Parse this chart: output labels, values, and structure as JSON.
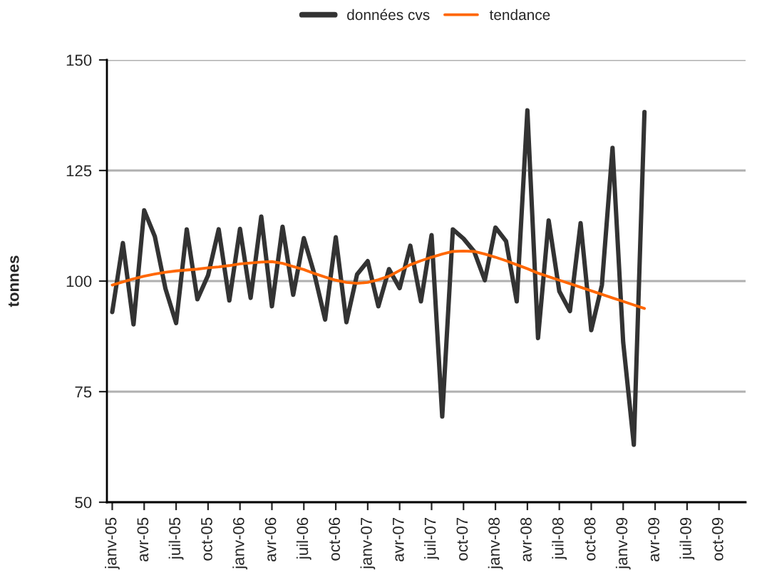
{
  "chart_data": {
    "type": "line",
    "ylabel": "tonnes",
    "categories": [
      "janv-05",
      null,
      null,
      "avr-05",
      null,
      null,
      "juil-05",
      null,
      null,
      "oct-05",
      null,
      null,
      "janv-06",
      null,
      null,
      "avr-06",
      null,
      null,
      "juil-06",
      null,
      null,
      "oct-06",
      null,
      null,
      "janv-07",
      null,
      null,
      "avr-07",
      null,
      null,
      "juil-07",
      null,
      null,
      "oct-07",
      null,
      null,
      "janv-08",
      null,
      null,
      "avr-08",
      null,
      null,
      "juil-08",
      null,
      null,
      "oct-08",
      null,
      null,
      "janv-09",
      null,
      null,
      "avr-09",
      null,
      null,
      "juil-09",
      null,
      null,
      "oct-09",
      null,
      null
    ],
    "series": [
      {
        "name": "données cvs",
        "color": "#333333",
        "values": [
          93.0,
          108.6,
          90.2,
          116.0,
          110.1,
          98.3,
          90.5,
          111.7,
          95.9,
          101.3,
          111.7,
          95.6,
          111.8,
          96.2,
          114.6,
          94.3,
          112.3,
          96.9,
          109.7,
          101.5,
          91.3,
          109.9,
          90.7,
          101.5,
          104.5,
          94.3,
          102.7,
          98.4,
          108.0,
          95.4,
          110.4,
          69.4,
          111.7,
          109.6,
          106.7,
          100.2,
          112.1,
          109.0,
          95.4,
          138.6,
          87.1,
          113.7,
          97.7,
          93.2,
          113.1,
          88.9,
          99.1,
          130.1,
          86.2,
          63.0,
          138.2,
          null,
          null,
          null,
          null,
          null,
          null,
          null,
          null,
          null
        ]
      },
      {
        "name": "tendance",
        "color": "#ff6600",
        "values": [
          99.1,
          99.8,
          100.5,
          101.1,
          101.6,
          102.0,
          102.3,
          102.5,
          102.7,
          103.0,
          103.2,
          103.5,
          103.9,
          104.1,
          104.3,
          104.4,
          104.0,
          103.3,
          102.6,
          101.7,
          100.9,
          100.2,
          99.7,
          99.5,
          99.7,
          100.3,
          101.1,
          102.4,
          103.7,
          104.6,
          105.4,
          106.1,
          106.7,
          106.8,
          106.7,
          106.1,
          105.4,
          104.6,
          103.7,
          102.8,
          101.8,
          101.0,
          100.2,
          99.4,
          98.6,
          97.8,
          97.0,
          96.2,
          95.4,
          94.6,
          93.8,
          null,
          null,
          null,
          null,
          null,
          null,
          null,
          null,
          null
        ]
      }
    ],
    "ylim": [
      50,
      150
    ],
    "yticks": [
      50,
      75,
      100,
      125,
      150
    ],
    "grid": "y",
    "legend": "top",
    "marker": "none",
    "line_style": "solid"
  }
}
